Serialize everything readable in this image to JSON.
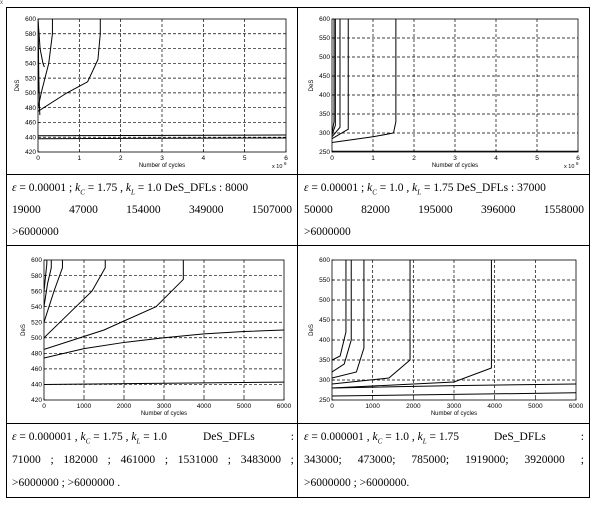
{
  "corner_mark": "x",
  "chart_data": [
    {
      "type": "line",
      "panel": "top-left",
      "xlabel": "Number of cycles",
      "ylabel": "DeS",
      "xlim": [
        0,
        6000000
      ],
      "ylim": [
        420,
        600
      ],
      "x_exponent_label": "x 10",
      "x_exponent": "6",
      "x_ticks": [
        0,
        1,
        2,
        3,
        4,
        5,
        6
      ],
      "y_ticks": [
        420,
        440,
        460,
        480,
        500,
        520,
        540,
        560,
        580,
        600
      ],
      "grid": true,
      "series": [
        {
          "x": [
            0,
            4000,
            8000,
            12000
          ],
          "y": [
            600,
            580,
            540,
            500
          ]
        },
        {
          "x": [
            0,
            10000,
            20000,
            35000,
            45000
          ],
          "y": [
            600,
            560,
            520,
            480,
            470
          ]
        },
        {
          "x": [
            0,
            50000,
            120000,
            154000
          ],
          "y": [
            600,
            560,
            540,
            535
          ]
        },
        {
          "x": [
            0,
            100000,
            260000,
            349000,
            349000
          ],
          "y": [
            480,
            505,
            540,
            580,
            600
          ]
        },
        {
          "x": [
            0,
            700000,
            1200000,
            1450000,
            1507000,
            1507000
          ],
          "y": [
            475,
            500,
            515,
            545,
            580,
            600
          ]
        },
        {
          "x": [
            0,
            6000000
          ],
          "y": [
            442,
            443
          ]
        },
        {
          "x": [
            0,
            6000000
          ],
          "y": [
            438,
            439
          ]
        }
      ]
    },
    {
      "type": "line",
      "panel": "top-right",
      "xlabel": "Number of cycles",
      "ylabel": "DeS",
      "xlim": [
        0,
        6000000
      ],
      "ylim": [
        250,
        600
      ],
      "x_exponent_label": "x 10",
      "x_exponent": "6",
      "x_ticks": [
        0,
        1,
        2,
        3,
        4,
        5,
        6
      ],
      "y_ticks": [
        250,
        300,
        350,
        400,
        450,
        500,
        550,
        600
      ],
      "grid": true,
      "series": [
        {
          "x": [
            0,
            50000,
            50000
          ],
          "y": [
            300,
            330,
            600
          ]
        },
        {
          "x": [
            0,
            82000,
            82000
          ],
          "y": [
            295,
            320,
            600
          ]
        },
        {
          "x": [
            0,
            195000,
            195000
          ],
          "y": [
            290,
            315,
            600
          ]
        },
        {
          "x": [
            0,
            396000,
            396000
          ],
          "y": [
            285,
            310,
            600
          ]
        },
        {
          "x": [
            0,
            1000000,
            1500000,
            1558000,
            1558000
          ],
          "y": [
            275,
            290,
            300,
            330,
            600
          ]
        },
        {
          "x": [
            0,
            6000000
          ],
          "y": [
            252,
            252
          ]
        }
      ]
    },
    {
      "type": "line",
      "panel": "bottom-left",
      "xlabel": "Number of cycles",
      "ylabel": "DeS",
      "xlim": [
        0,
        6000
      ],
      "ylim": [
        420,
        600
      ],
      "x_ticks": [
        0,
        1000,
        2000,
        3000,
        4000,
        5000,
        6000
      ],
      "y_ticks": [
        420,
        440,
        460,
        480,
        500,
        520,
        540,
        560,
        580,
        600
      ],
      "grid": true,
      "series": [
        {
          "x": [
            0,
            40,
            71,
            71
          ],
          "y": [
            560,
            580,
            595,
            600
          ]
        },
        {
          "x": [
            0,
            90,
            182,
            182
          ],
          "y": [
            540,
            570,
            590,
            600
          ]
        },
        {
          "x": [
            0,
            250,
            461,
            461
          ],
          "y": [
            520,
            560,
            590,
            600
          ]
        },
        {
          "x": [
            0,
            600,
            1200,
            1531,
            1531
          ],
          "y": [
            500,
            530,
            560,
            590,
            600
          ]
        },
        {
          "x": [
            0,
            1500,
            2800,
            3483,
            3483
          ],
          "y": [
            485,
            510,
            540,
            575,
            600
          ]
        },
        {
          "x": [
            0,
            1000,
            2000,
            3000,
            4000,
            5000,
            6000
          ],
          "y": [
            474,
            486,
            494,
            500,
            505,
            508,
            510
          ]
        },
        {
          "x": [
            0,
            6000
          ],
          "y": [
            440,
            443
          ]
        }
      ]
    },
    {
      "type": "line",
      "panel": "bottom-right",
      "xlabel": "Number of cycles",
      "ylabel": "DeS",
      "xlim": [
        0,
        6000
      ],
      "ylim": [
        250,
        600
      ],
      "x_ticks": [
        0,
        1000,
        2000,
        3000,
        4000,
        5000,
        6000
      ],
      "y_ticks": [
        250,
        300,
        350,
        400,
        450,
        500,
        550,
        600
      ],
      "grid": true,
      "series": [
        {
          "x": [
            0,
            200,
            343,
            343
          ],
          "y": [
            350,
            360,
            420,
            600
          ]
        },
        {
          "x": [
            0,
            300,
            473,
            473
          ],
          "y": [
            320,
            340,
            400,
            600
          ]
        },
        {
          "x": [
            0,
            600,
            785,
            785
          ],
          "y": [
            305,
            320,
            380,
            600
          ]
        },
        {
          "x": [
            0,
            1400,
            1919,
            1919
          ],
          "y": [
            290,
            305,
            350,
            600
          ]
        },
        {
          "x": [
            0,
            3000,
            3920,
            3920
          ],
          "y": [
            280,
            295,
            330,
            600
          ]
        },
        {
          "x": [
            0,
            3000,
            6000
          ],
          "y": [
            280,
            286,
            290
          ]
        },
        {
          "x": [
            0,
            6000
          ],
          "y": [
            260,
            268
          ]
        }
      ]
    }
  ],
  "captions": {
    "tl": {
      "eps": "ε",
      "eq1": " = 0.00001 ; ",
      "k1": "k",
      "k1sub": "C",
      "v1": " = 1.75 , ",
      "k2": "k",
      "k2sub": "L",
      "v2": " = 1.0  ",
      "label": "DeS_DFLs : ",
      "first": "8000",
      "row2": [
        "19000",
        "47000",
        "154000",
        "349000",
        "1507000"
      ],
      "row3": ">6000000"
    },
    "tr": {
      "eps": "ε",
      "eq1": " = 0.00001 ; ",
      "k1": "k",
      "k1sub": "C",
      "v1": " = 1.0 , ",
      "k2": "k",
      "k2sub": "L",
      "v2": " = 1.75  ",
      "label": "DeS_DFLs : ",
      "first": "37000",
      "row2": [
        "50000",
        "82000",
        "195000",
        "396000",
        "1558000"
      ],
      "row3": ">6000000"
    },
    "bl": {
      "eps": "ε",
      "eq1": " = 0.000001 , ",
      "k1": "k",
      "k1sub": "C",
      "v1": " = 1.75 , ",
      "k2": "k",
      "k2sub": "L",
      "v2": " = 1.0",
      "label": "DeS_DFLs",
      "colon": ":",
      "row2": [
        "71000",
        ";",
        "182000",
        ";",
        "461000",
        ";",
        "1531000",
        ";",
        "3483000",
        ";"
      ],
      "row3": ">6000000  ;  >6000000 ."
    },
    "br": {
      "eps": "ε",
      "eq1": " = 0.000001 , ",
      "k1": "k",
      "k1sub": "C",
      "v1": " = 1.0 , ",
      "k2": "k",
      "k2sub": "L",
      "v2": " = 1.75",
      "label": "DeS_DFLs",
      "colon": ":",
      "row2": [
        "343000;",
        "473000;",
        "785000;",
        "1919000;",
        "3920000",
        ";"
      ],
      "row3": ">6000000 ;  >6000000."
    }
  }
}
